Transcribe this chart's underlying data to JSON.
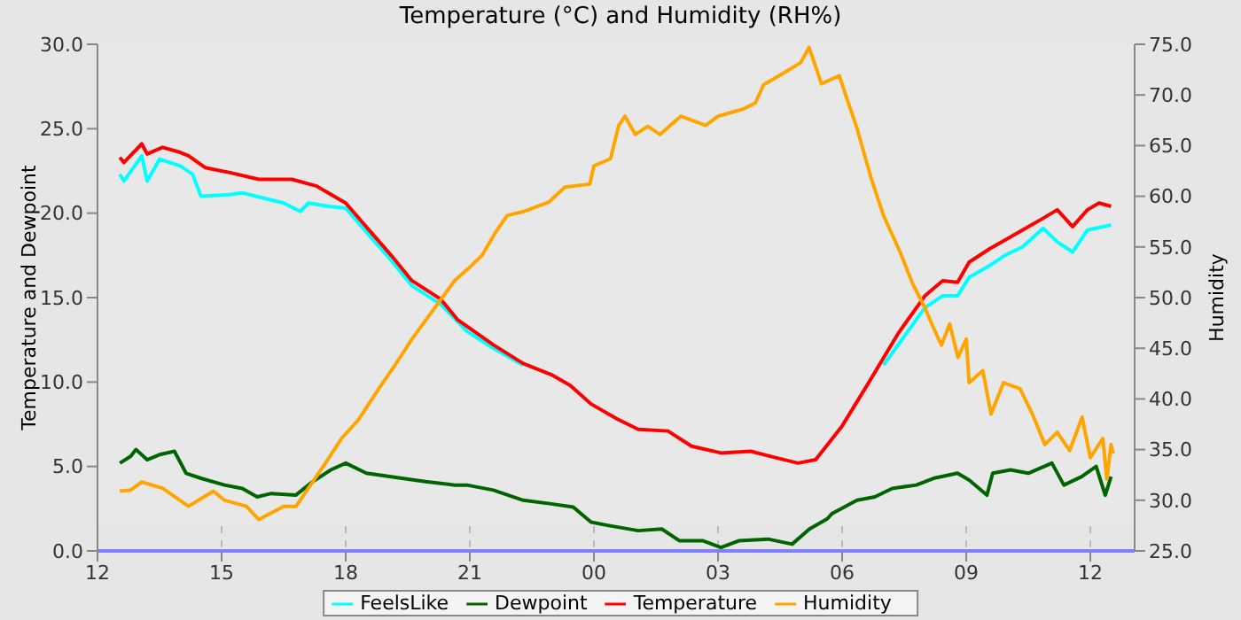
{
  "chart_data": {
    "type": "line",
    "title": "Temperature (°C) and Humidity (RH%)",
    "ylabel": "Temperature and Dewpoint",
    "y2label": "Humidity",
    "xlim": [
      12,
      37.07
    ],
    "xticks": [
      {
        "value": 12,
        "label": "12"
      },
      {
        "value": 15,
        "label": "15"
      },
      {
        "value": 18,
        "label": "18"
      },
      {
        "value": 21,
        "label": "21"
      },
      {
        "value": 24,
        "label": "00"
      },
      {
        "value": 27,
        "label": "03"
      },
      {
        "value": 30,
        "label": "06"
      },
      {
        "value": 33,
        "label": "09"
      },
      {
        "value": 36,
        "label": "12"
      }
    ],
    "ylim": [
      0,
      30
    ],
    "yticks": [
      {
        "value": 0,
        "label": "0.0"
      },
      {
        "value": 5,
        "label": "5.0"
      },
      {
        "value": 10,
        "label": "10.0"
      },
      {
        "value": 15,
        "label": "15.0"
      },
      {
        "value": 20,
        "label": "20.0"
      },
      {
        "value": 25,
        "label": "25.0"
      },
      {
        "value": 30,
        "label": "30.0"
      }
    ],
    "y2lim": [
      25,
      75
    ],
    "y2ticks": [
      {
        "value": 25,
        "label": "25.0"
      },
      {
        "value": 30,
        "label": "30.0"
      },
      {
        "value": 35,
        "label": "35.0"
      },
      {
        "value": 40,
        "label": "40.0"
      },
      {
        "value": 45,
        "label": "45.0"
      },
      {
        "value": 50,
        "label": "50.0"
      },
      {
        "value": 55,
        "label": "55.0"
      },
      {
        "value": 60,
        "label": "60.0"
      },
      {
        "value": 65,
        "label": "65.0"
      },
      {
        "value": 70,
        "label": "70.0"
      },
      {
        "value": 75,
        "label": "75.0"
      }
    ],
    "grid": true,
    "legend": "bottom",
    "marker": "none",
    "line_style": "solid",
    "series": [
      {
        "name": "FeelsLike",
        "color": "#00ffff",
        "x": [
          12.54,
          12.64,
          13.07,
          13.2,
          13.5,
          14.0,
          14.3,
          14.5,
          15.2,
          15.5,
          16.5,
          16.9,
          17.1,
          17.6,
          18.0,
          18.6,
          19.1,
          19.6,
          20.3,
          20.93,
          21.57,
          22.29,
          23.0,
          31.0,
          32.0,
          32.43,
          32.79,
          33.07,
          33.57,
          33.93,
          34.36,
          34.86,
          35.2,
          35.57,
          35.93,
          36.5
        ],
        "values": [
          22.3,
          21.9,
          23.4,
          21.9,
          23.2,
          22.8,
          22.3,
          21.0,
          21.1,
          21.2,
          20.6,
          20.1,
          20.6,
          20.4,
          20.3,
          18.6,
          17.2,
          15.7,
          14.6,
          13.0,
          12.0,
          11.0,
          null,
          11.0,
          14.4,
          15.1,
          15.1,
          16.2,
          16.9,
          17.5,
          18.0,
          19.1,
          18.3,
          17.7,
          19.0,
          19.3
        ]
      },
      {
        "name": "Dewpoint",
        "color": "#006400",
        "x": [
          12.54,
          12.8,
          12.93,
          13.2,
          13.5,
          13.86,
          14.14,
          14.5,
          15.07,
          15.5,
          15.86,
          16.2,
          16.79,
          17.2,
          17.64,
          18.0,
          18.5,
          19.36,
          19.93,
          20.64,
          20.93,
          21.57,
          22.29,
          22.93,
          23.5,
          23.93,
          24.36,
          25.07,
          25.64,
          26.07,
          26.64,
          27.07,
          27.5,
          28.21,
          28.79,
          29.21,
          29.64,
          29.75,
          30.36,
          30.79,
          31.21,
          31.79,
          32.21,
          32.79,
          33.07,
          33.5,
          33.64,
          34.07,
          34.5,
          35.07,
          35.36,
          35.79,
          36.14,
          36.36,
          36.5
        ],
        "values": [
          5.2,
          5.6,
          6.0,
          5.4,
          5.7,
          5.9,
          4.6,
          4.3,
          3.9,
          3.7,
          3.2,
          3.4,
          3.3,
          4.1,
          4.8,
          5.2,
          4.6,
          4.3,
          4.1,
          3.9,
          3.9,
          3.6,
          3.0,
          2.8,
          2.6,
          1.7,
          1.5,
          1.2,
          1.3,
          0.6,
          0.6,
          0.2,
          0.6,
          0.7,
          0.4,
          1.3,
          1.9,
          2.2,
          3.0,
          3.2,
          3.7,
          3.9,
          4.3,
          4.6,
          4.2,
          3.3,
          4.6,
          4.8,
          4.6,
          5.2,
          3.9,
          4.4,
          5.0,
          3.3,
          4.4
        ]
      },
      {
        "name": "Temperature",
        "color": "#ff0000",
        "x": [
          12.54,
          12.64,
          13.07,
          13.2,
          13.57,
          14.0,
          14.2,
          14.6,
          15.2,
          15.9,
          16.7,
          17.3,
          18.0,
          18.6,
          19.1,
          19.6,
          20.3,
          20.7,
          20.93,
          21.57,
          22.29,
          23.0,
          23.43,
          23.93,
          24.57,
          25.07,
          25.79,
          26.36,
          27.07,
          27.79,
          28.43,
          28.93,
          29.36,
          30.0,
          30.65,
          31.36,
          32.0,
          32.43,
          32.79,
          33.07,
          33.57,
          33.93,
          34.36,
          34.86,
          35.2,
          35.57,
          35.93,
          36.21,
          36.5
        ],
        "values": [
          23.3,
          23.0,
          24.1,
          23.5,
          23.9,
          23.6,
          23.4,
          22.7,
          22.4,
          22.0,
          22.0,
          21.6,
          20.6,
          18.9,
          17.5,
          16.0,
          14.9,
          13.7,
          13.3,
          12.2,
          11.1,
          10.4,
          9.8,
          8.7,
          7.8,
          7.2,
          7.1,
          6.2,
          5.8,
          5.9,
          5.5,
          5.2,
          5.4,
          7.4,
          10.0,
          12.9,
          15.1,
          16.0,
          15.9,
          17.1,
          17.9,
          18.4,
          19.0,
          19.7,
          20.2,
          19.2,
          20.2,
          20.6,
          20.4
        ]
      },
      {
        "name": "Humidity",
        "color": "#ffa500",
        "axis": "y2",
        "x": [
          12.54,
          12.8,
          13.07,
          13.57,
          14.2,
          14.8,
          15.07,
          15.6,
          15.9,
          16.5,
          16.8,
          17.2,
          17.5,
          17.9,
          18.3,
          18.8,
          19.2,
          19.6,
          20.1,
          20.64,
          21.0,
          21.3,
          21.6,
          21.9,
          22.3,
          22.9,
          23.3,
          23.9,
          24.0,
          24.4,
          24.6,
          24.75,
          25.0,
          25.3,
          25.6,
          26.1,
          26.7,
          27.0,
          27.6,
          27.9,
          28.1,
          28.6,
          29.0,
          29.2,
          29.5,
          29.93,
          30.1,
          30.36,
          30.7,
          31.0,
          31.4,
          31.7,
          32.0,
          32.2,
          32.4,
          32.6,
          32.8,
          33.0,
          33.07,
          33.4,
          33.6,
          33.9,
          34.3,
          34.6,
          34.9,
          35.2,
          35.5,
          35.8,
          36.0,
          36.3,
          36.4,
          36.5,
          36.55
        ],
        "values": [
          30.9,
          31.0,
          31.8,
          31.2,
          29.4,
          30.9,
          30.0,
          29.4,
          28.1,
          29.4,
          29.4,
          31.8,
          33.6,
          36.1,
          37.9,
          41.0,
          43.4,
          45.9,
          48.7,
          51.7,
          53.0,
          54.2,
          56.3,
          58.1,
          58.5,
          59.4,
          60.9,
          61.2,
          63.0,
          63.7,
          67.0,
          67.9,
          66.1,
          66.9,
          66.1,
          67.9,
          67.0,
          67.9,
          68.6,
          69.2,
          71.0,
          72.2,
          73.2,
          74.7,
          71.1,
          71.9,
          69.8,
          66.7,
          61.8,
          58.1,
          54.5,
          51.4,
          49.0,
          47.1,
          45.3,
          47.4,
          44.1,
          45.9,
          41.6,
          42.8,
          38.5,
          41.6,
          41.0,
          38.5,
          35.5,
          36.7,
          34.9,
          38.2,
          34.2,
          36.1,
          32.1,
          35.5,
          34.6
        ]
      }
    ]
  }
}
